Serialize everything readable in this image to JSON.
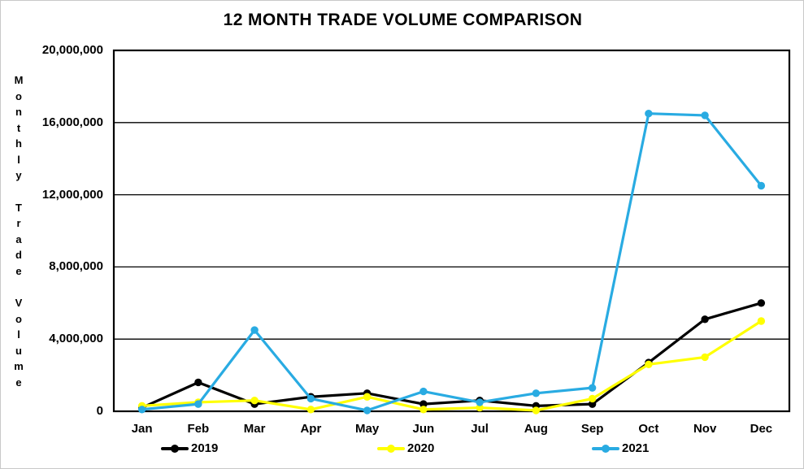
{
  "title": "12 MONTH TRADE VOLUME COMPARISON",
  "chart_data": {
    "type": "line",
    "title": "12 MONTH TRADE VOLUME COMPARISON",
    "xlabel": "",
    "ylabel": "Monthly Trade Volume",
    "categories": [
      "Jan",
      "Feb",
      "Mar",
      "Apr",
      "May",
      "Jun",
      "Jul",
      "Aug",
      "Sep",
      "Oct",
      "Nov",
      "Dec"
    ],
    "series": [
      {
        "name": "2019",
        "color": "#000000",
        "values": [
          200000,
          1600000,
          400000,
          800000,
          1000000,
          400000,
          600000,
          300000,
          400000,
          2700000,
          5100000,
          6000000
        ]
      },
      {
        "name": "2020",
        "color": "#FFFF00",
        "values": [
          300000,
          500000,
          600000,
          100000,
          800000,
          100000,
          200000,
          50000,
          700000,
          2600000,
          3000000,
          5000000
        ]
      },
      {
        "name": "2021",
        "color": "#29ABE2",
        "values": [
          100000,
          400000,
          4500000,
          700000,
          50000,
          1100000,
          500000,
          1000000,
          1300000,
          16500000,
          16400000,
          12500000
        ]
      }
    ],
    "ylim": [
      0,
      20000000
    ],
    "y_tick_values": [
      0,
      4000000,
      8000000,
      12000000,
      16000000,
      20000000
    ],
    "y_tick_labels": [
      "0",
      "4,000,000",
      "8,000,000",
      "12,000,000",
      "16,000,000",
      "20,000,000"
    ],
    "grid": "horizontal-only",
    "legend_position": "bottom",
    "colors": {
      "background": "#ffffff",
      "axis": "#000000",
      "outer_border": "#c8c8c8"
    }
  }
}
